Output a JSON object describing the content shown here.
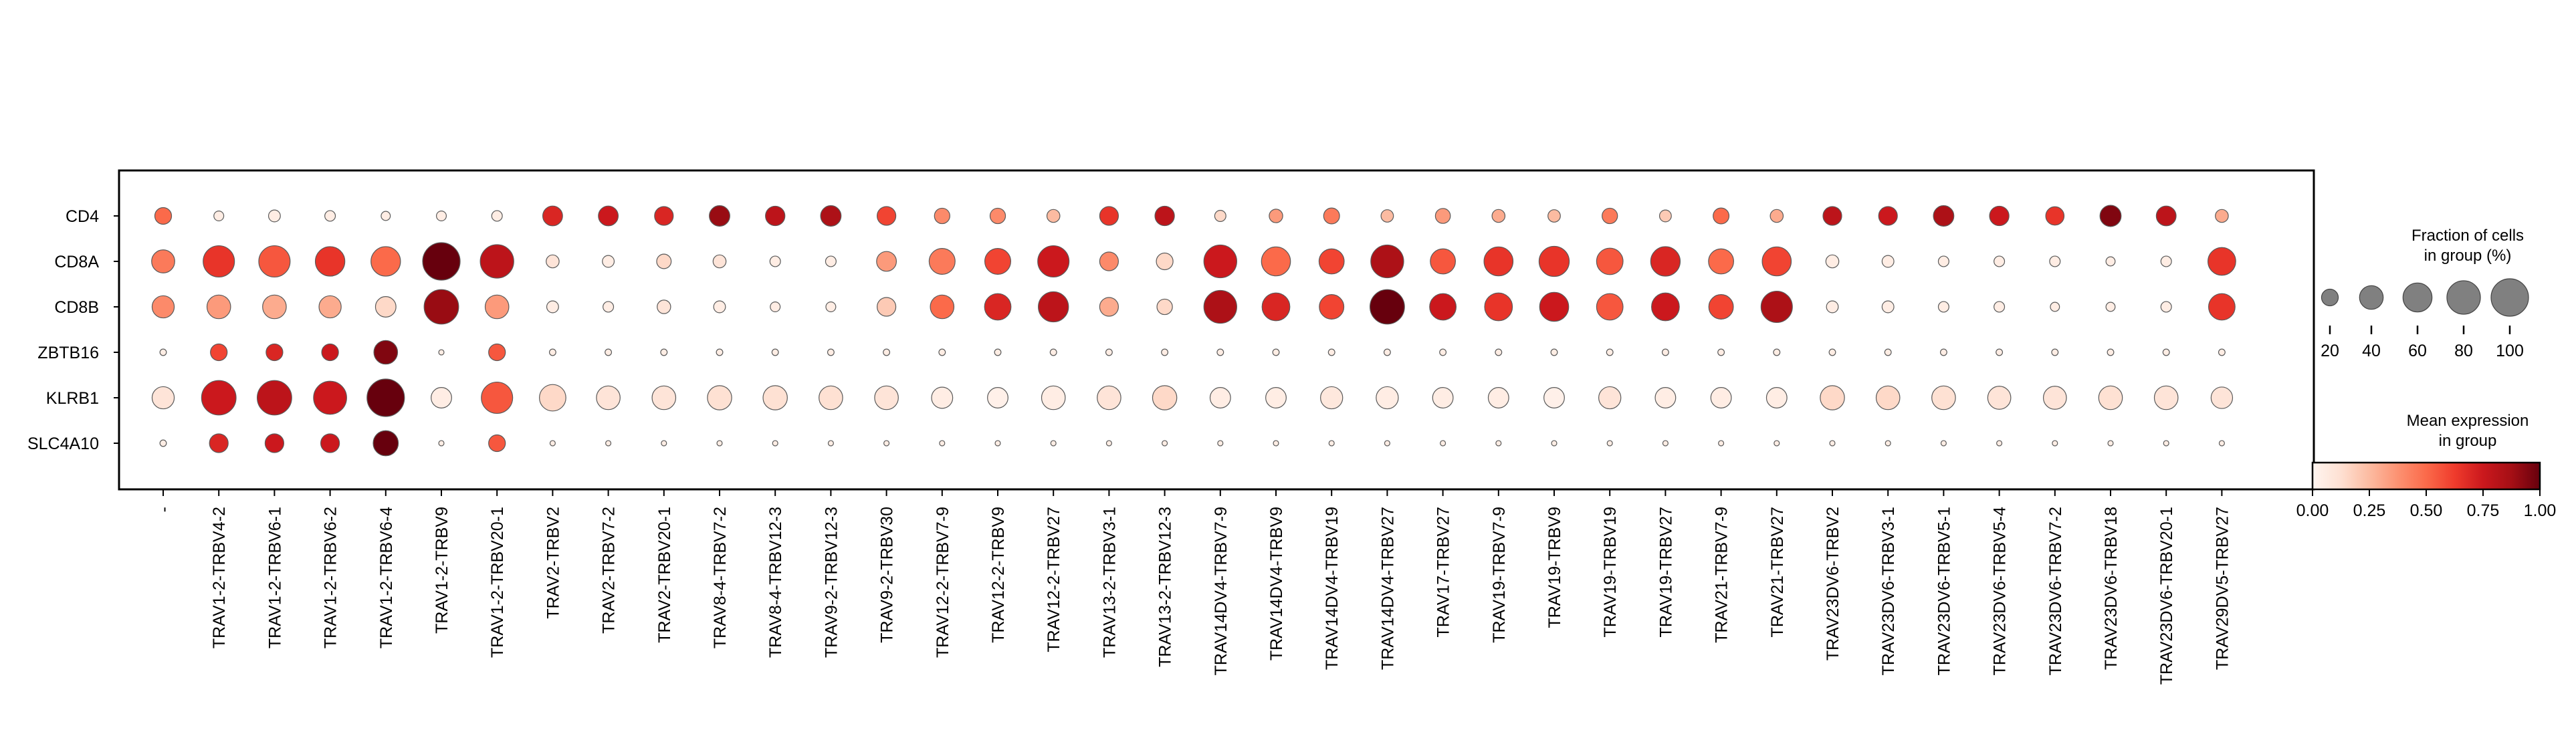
{
  "chart_data": {
    "type": "dotplot",
    "genes": [
      "CD4",
      "CD8A",
      "CD8B",
      "ZBTB16",
      "KLRB1",
      "SLC4A10"
    ],
    "groups": [
      "-",
      "TRAV1-2-TRBV4-2",
      "TRAV1-2-TRBV6-1",
      "TRAV1-2-TRBV6-2",
      "TRAV1-2-TRBV6-4",
      "TRAV1-2-TRBV9",
      "TRAV1-2-TRBV20-1",
      "TRAV2-TRBV2",
      "TRAV2-TRBV7-2",
      "TRAV2-TRBV20-1",
      "TRAV8-4-TRBV7-2",
      "TRAV8-4-TRBV12-3",
      "TRAV9-2-TRBV12-3",
      "TRAV9-2-TRBV30",
      "TRAV12-2-TRBV7-9",
      "TRAV12-2-TRBV9",
      "TRAV12-2-TRBV27",
      "TRAV13-2-TRBV3-1",
      "TRAV13-2-TRBV12-3",
      "TRAV14DV4-TRBV7-9",
      "TRAV14DV4-TRBV9",
      "TRAV14DV4-TRBV19",
      "TRAV14DV4-TRBV27",
      "TRAV17-TRBV27",
      "TRAV19-TRBV7-9",
      "TRAV19-TRBV9",
      "TRAV19-TRBV19",
      "TRAV19-TRBV27",
      "TRAV21-TRBV7-9",
      "TRAV21-TRBV27",
      "TRAV23DV6-TRBV2",
      "TRAV23DV6-TRBV3-1",
      "TRAV23DV6-TRBV5-1",
      "TRAV23DV6-TRBV5-4",
      "TRAV23DV6-TRBV7-2",
      "TRAV23DV6-TRBV18",
      "TRAV23DV6-TRBV20-1",
      "TRAV29DV5-TRBV27"
    ],
    "fraction_pct": [
      [
        20,
        7,
        10,
        8,
        6,
        7,
        8,
        28,
        28,
        25,
        30,
        27,
        30,
        25,
        17,
        17,
        12,
        25,
        27,
        9,
        13,
        18,
        11,
        16,
        12,
        11,
        17,
        10,
        18,
        12,
        25,
        25,
        30,
        27,
        24,
        32,
        28,
        12
      ],
      [
        38,
        70,
        70,
        62,
        62,
        100,
        80,
        12,
        10,
        15,
        12,
        8,
        8,
        28,
        48,
        48,
        70,
        25,
        20,
        77,
        60,
        45,
        77,
        45,
        60,
        65,
        50,
        62,
        45,
        60,
        12,
        10,
        8,
        8,
        8,
        6,
        8,
        55
      ],
      [
        35,
        40,
        40,
        35,
        30,
        85,
        40,
        10,
        8,
        13,
        10,
        7,
        7,
        25,
        40,
        50,
        65,
        25,
        17,
        77,
        55,
        43,
        85,
        50,
        55,
        60,
        50,
        55,
        43,
        70,
        10,
        10,
        8,
        8,
        6,
        6,
        8,
        50
      ],
      [
        3,
        20,
        20,
        20,
        40,
        2,
        20,
        3,
        3,
        3,
        3,
        3,
        3,
        3,
        3,
        3,
        3,
        3,
        3,
        3,
        3,
        3,
        3,
        3,
        3,
        3,
        3,
        3,
        3,
        3,
        3,
        3,
        3,
        3,
        3,
        3,
        3,
        3
      ],
      [
        35,
        85,
        85,
        78,
        100,
        30,
        70,
        50,
        40,
        40,
        42,
        42,
        40,
        40,
        32,
        30,
        40,
        40,
        42,
        30,
        30,
        35,
        35,
        30,
        30,
        30,
        35,
        30,
        30,
        30,
        42,
        40,
        40,
        38,
        38,
        40,
        40,
        33
      ],
      [
        3,
        25,
        25,
        25,
        45,
        2,
        20,
        2,
        2,
        2,
        2,
        2,
        2,
        2,
        2,
        2,
        2,
        2,
        2,
        2,
        2,
        2,
        2,
        2,
        2,
        2,
        2,
        2,
        2,
        2,
        2,
        2,
        2,
        2,
        2,
        2,
        2,
        2
      ]
    ],
    "mean_expression": [
      [
        0.5,
        0.05,
        0.05,
        0.05,
        0.05,
        0.05,
        0.05,
        0.7,
        0.75,
        0.7,
        0.9,
        0.8,
        0.85,
        0.6,
        0.4,
        0.4,
        0.25,
        0.65,
        0.8,
        0.15,
        0.35,
        0.45,
        0.25,
        0.35,
        0.3,
        0.25,
        0.45,
        0.2,
        0.5,
        0.3,
        0.8,
        0.75,
        0.85,
        0.75,
        0.65,
        0.95,
        0.8,
        0.3
      ],
      [
        0.45,
        0.65,
        0.55,
        0.65,
        0.5,
        1.0,
        0.8,
        0.1,
        0.05,
        0.15,
        0.1,
        0.05,
        0.05,
        0.35,
        0.45,
        0.6,
        0.75,
        0.4,
        0.15,
        0.75,
        0.5,
        0.6,
        0.85,
        0.55,
        0.65,
        0.65,
        0.55,
        0.7,
        0.5,
        0.6,
        0.05,
        0.05,
        0.05,
        0.05,
        0.05,
        0.05,
        0.05,
        0.65
      ],
      [
        0.4,
        0.35,
        0.3,
        0.3,
        0.15,
        0.9,
        0.35,
        0.05,
        0.05,
        0.1,
        0.05,
        0.05,
        0.05,
        0.2,
        0.5,
        0.7,
        0.8,
        0.3,
        0.15,
        0.85,
        0.7,
        0.6,
        1.0,
        0.75,
        0.65,
        0.75,
        0.55,
        0.75,
        0.6,
        0.85,
        0.05,
        0.05,
        0.05,
        0.05,
        0.05,
        0.05,
        0.05,
        0.65
      ],
      [
        0.05,
        0.6,
        0.7,
        0.75,
        0.95,
        0.05,
        0.55,
        0.05,
        0.05,
        0.05,
        0.05,
        0.05,
        0.05,
        0.05,
        0.05,
        0.05,
        0.05,
        0.05,
        0.05,
        0.05,
        0.05,
        0.05,
        0.05,
        0.05,
        0.05,
        0.05,
        0.05,
        0.05,
        0.05,
        0.05,
        0.05,
        0.05,
        0.05,
        0.05,
        0.05,
        0.05,
        0.05,
        0.05
      ],
      [
        0.1,
        0.75,
        0.8,
        0.75,
        1.0,
        0.05,
        0.55,
        0.15,
        0.1,
        0.1,
        0.12,
        0.12,
        0.12,
        0.1,
        0.05,
        0.03,
        0.05,
        0.1,
        0.15,
        0.05,
        0.05,
        0.08,
        0.05,
        0.05,
        0.05,
        0.03,
        0.1,
        0.05,
        0.05,
        0.05,
        0.15,
        0.15,
        0.12,
        0.1,
        0.1,
        0.12,
        0.1,
        0.1
      ],
      [
        0.05,
        0.7,
        0.75,
        0.75,
        1.0,
        0.05,
        0.55,
        0.05,
        0.05,
        0.05,
        0.05,
        0.05,
        0.05,
        0.05,
        0.05,
        0.05,
        0.05,
        0.05,
        0.05,
        0.05,
        0.05,
        0.05,
        0.05,
        0.05,
        0.05,
        0.05,
        0.05,
        0.05,
        0.05,
        0.05,
        0.05,
        0.05,
        0.05,
        0.05,
        0.05,
        0.05,
        0.05,
        0.05
      ]
    ],
    "size_legend": {
      "title_line1": "Fraction of cells",
      "title_line2": "in group (%)",
      "values": [
        20,
        40,
        60,
        80,
        100
      ],
      "labels": [
        "20",
        "40",
        "60",
        "80",
        "100"
      ]
    },
    "color_legend": {
      "title_line1": "Mean expression",
      "title_line2": "in group",
      "ticks": [
        0.0,
        0.25,
        0.5,
        0.75,
        1.0
      ],
      "tick_labels": [
        "0.00",
        "0.25",
        "0.50",
        "0.75",
        "1.00"
      ],
      "colormap": "Reds",
      "range": [
        0,
        1
      ]
    }
  },
  "colors": {
    "reds_stops": [
      "#fff5f0",
      "#fee0d2",
      "#fcbba1",
      "#fc9272",
      "#fb6a4a",
      "#ef3b2c",
      "#cb181d",
      "#a50f15",
      "#67000d"
    ],
    "size_legend_fill": "#808080",
    "dot_edge": "#5a5a5a",
    "frame": "#000000"
  }
}
